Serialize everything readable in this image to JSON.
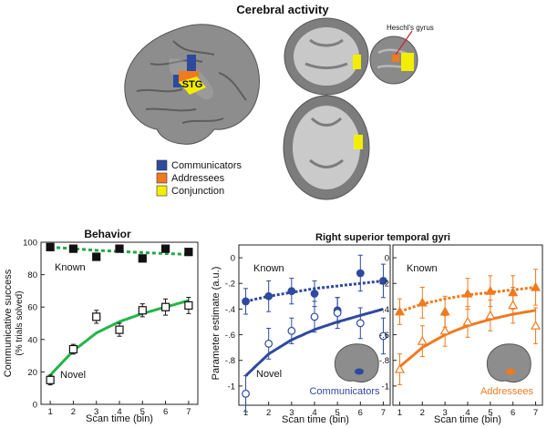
{
  "colors": {
    "communicators": "#2e4a9e",
    "addressees": "#f07a1e",
    "conjunction": "#f2ee00",
    "known_green": "#22a845",
    "novel_green": "#22b54a",
    "brain_gray": "#8a8a8a"
  },
  "cerebral": {
    "title": "Cerebral activity",
    "stg_label": "STG",
    "heschl_label": "Heschl's gyrus",
    "legend": [
      {
        "label": "Communicators",
        "color": "#2e4a9e"
      },
      {
        "label": "Addressees",
        "color": "#f07a1e"
      },
      {
        "label": "Conjunction",
        "color": "#f2ee00"
      }
    ]
  },
  "rstg": {
    "title": "Right superior temporal gyri"
  },
  "chart_data": [
    {
      "type": "line",
      "title": "Behavior",
      "xlabel": "Scan time (bin)",
      "ylabel": "Communicative success",
      "ylabel2": "(% trials solved)",
      "x": [
        1,
        2,
        3,
        4,
        5,
        6,
        7
      ],
      "xlim": [
        0.6,
        7.4
      ],
      "ylim": [
        0,
        100
      ],
      "yticks": [
        0,
        20,
        40,
        60,
        80,
        100
      ],
      "annotations": [
        "Known",
        "Novel"
      ],
      "series": [
        {
          "name": "Known",
          "marker": "filled-square",
          "values": [
            97,
            96,
            91,
            96,
            90,
            96,
            94
          ],
          "errors": [
            1,
            2,
            2,
            2,
            2,
            2,
            2
          ],
          "fit": [
            97,
            96,
            95,
            94.3,
            93.6,
            93,
            92.5
          ],
          "fit_style": "dashed"
        },
        {
          "name": "Novel",
          "marker": "open-square",
          "values": [
            15,
            34,
            54,
            46,
            58,
            60,
            61
          ],
          "errors": [
            3,
            3,
            4,
            4,
            4,
            5,
            5
          ],
          "fit": [
            18,
            33,
            44,
            51,
            56,
            60,
            64
          ],
          "fit_style": "solid"
        }
      ]
    },
    {
      "type": "line",
      "title": "",
      "xlabel": "Scan time (bin)",
      "ylabel": "Parameter estimate (a.u.)",
      "group_label": "Communicators",
      "x": [
        1,
        2,
        3,
        4,
        5,
        6,
        7
      ],
      "xlim": [
        0.7,
        7.3
      ],
      "ylim": [
        -1.15,
        0.1
      ],
      "yticks": [
        0,
        -0.2,
        -0.4,
        -0.6,
        -0.8,
        -1
      ],
      "annotations": [
        "Known",
        "Novel"
      ],
      "series": [
        {
          "name": "Known",
          "marker": "filled-circle",
          "values": [
            -0.34,
            -0.3,
            -0.26,
            -0.28,
            -0.41,
            -0.12,
            -0.18
          ],
          "errors": [
            0.1,
            0.12,
            0.1,
            0.1,
            0.1,
            0.14,
            0.13
          ],
          "fit": [
            -0.34,
            -0.3,
            -0.27,
            -0.24,
            -0.22,
            -0.2,
            -0.18
          ],
          "fit_style": "dotted"
        },
        {
          "name": "Novel",
          "marker": "open-circle",
          "values": [
            -1.06,
            -0.67,
            -0.57,
            -0.46,
            -0.43,
            -0.51,
            -0.61
          ],
          "errors": [
            0.14,
            0.12,
            0.1,
            0.12,
            0.12,
            0.12,
            0.14
          ],
          "fit": [
            -0.92,
            -0.75,
            -0.64,
            -0.56,
            -0.5,
            -0.45,
            -0.4
          ],
          "fit_style": "solid"
        }
      ]
    },
    {
      "type": "line",
      "title": "",
      "xlabel": "Scan time (bin)",
      "ylabel": "",
      "group_label": "Addressees",
      "x": [
        1,
        2,
        3,
        4,
        5,
        6,
        7
      ],
      "xlim": [
        0.7,
        7.3
      ],
      "ylim": [
        -1.15,
        0.1
      ],
      "yticks": [
        0,
        -0.2,
        -0.4,
        -0.6,
        -0.8,
        -1
      ],
      "annotations": [
        "Known",
        "Novel"
      ],
      "series": [
        {
          "name": "Known",
          "marker": "filled-triangle",
          "values": [
            -0.42,
            -0.35,
            -0.42,
            -0.28,
            -0.26,
            -0.27,
            -0.23
          ],
          "errors": [
            0.1,
            0.12,
            0.12,
            0.12,
            0.12,
            0.13,
            0.14
          ],
          "fit": [
            -0.42,
            -0.36,
            -0.32,
            -0.29,
            -0.27,
            -0.25,
            -0.23
          ],
          "fit_style": "dotted"
        },
        {
          "name": "Novel",
          "marker": "open-triangle",
          "values": [
            -0.87,
            -0.65,
            -0.57,
            -0.5,
            -0.45,
            -0.37,
            -0.53
          ],
          "errors": [
            0.12,
            0.12,
            0.12,
            0.12,
            0.12,
            0.14,
            0.14
          ],
          "fit": [
            -0.85,
            -0.7,
            -0.6,
            -0.53,
            -0.48,
            -0.44,
            -0.41
          ],
          "fit_style": "solid"
        }
      ]
    }
  ]
}
